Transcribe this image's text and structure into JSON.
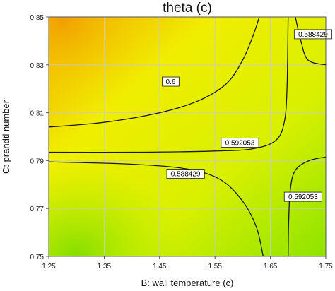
{
  "chart_data": {
    "type": "contour",
    "title": "theta (c)",
    "xlabel": "B: wall temperature (c)",
    "ylabel": "C: prandtl number",
    "xlim": [
      1.25,
      1.75
    ],
    "ylim": [
      0.75,
      0.85
    ],
    "x_ticks": [
      "1.25",
      "1.35",
      "1.45",
      "1.55",
      "1.65",
      "1.75"
    ],
    "y_ticks": [
      "0.75",
      "0.77",
      "0.79",
      "0.81",
      "0.83",
      "0.85"
    ],
    "grid": true,
    "colors": {
      "high": "#f2a800",
      "mid": "#f0f000",
      "low": "#7fe000",
      "line": "#1a1a1a",
      "grid": "#c9c9c9"
    },
    "contours": [
      {
        "level": "0.6",
        "points": [
          [
            1.25,
            0.804
          ],
          [
            1.35,
            0.806
          ],
          [
            1.45,
            0.81
          ],
          [
            1.52,
            0.815
          ],
          [
            1.57,
            0.822
          ],
          [
            1.6,
            0.832
          ],
          [
            1.62,
            0.843
          ],
          [
            1.63,
            0.85
          ]
        ],
        "label_at": [
          1.47,
          0.823
        ]
      },
      {
        "level": "0.592053",
        "points": [
          [
            1.25,
            0.7935
          ],
          [
            1.4,
            0.7935
          ],
          [
            1.55,
            0.794
          ],
          [
            1.62,
            0.795
          ],
          [
            1.66,
            0.7985
          ],
          [
            1.675,
            0.806
          ],
          [
            1.68,
            0.82
          ],
          [
            1.682,
            0.85
          ]
        ],
        "label_at": [
          1.595,
          0.7975
        ]
      },
      {
        "level": "0.588429",
        "points": [
          [
            1.25,
            0.7895
          ],
          [
            1.4,
            0.7885
          ],
          [
            1.5,
            0.7865
          ],
          [
            1.56,
            0.782
          ],
          [
            1.6,
            0.773
          ],
          [
            1.625,
            0.762
          ],
          [
            1.637,
            0.75
          ]
        ],
        "label_at": [
          1.497,
          0.7845
        ]
      },
      {
        "level": "0.588429",
        "points": [
          [
            1.695,
            0.85
          ],
          [
            1.705,
            0.84
          ],
          [
            1.718,
            0.832
          ],
          [
            1.75,
            0.83
          ]
        ],
        "label_at": [
          1.727,
          0.8428
        ]
      },
      {
        "level": "0.592053",
        "points": [
          [
            1.682,
            0.75
          ],
          [
            1.683,
            0.765
          ],
          [
            1.686,
            0.778
          ],
          [
            1.695,
            0.786
          ],
          [
            1.72,
            0.79
          ],
          [
            1.75,
            0.7915
          ]
        ],
        "label_at": [
          1.709,
          0.7749
        ]
      }
    ]
  }
}
